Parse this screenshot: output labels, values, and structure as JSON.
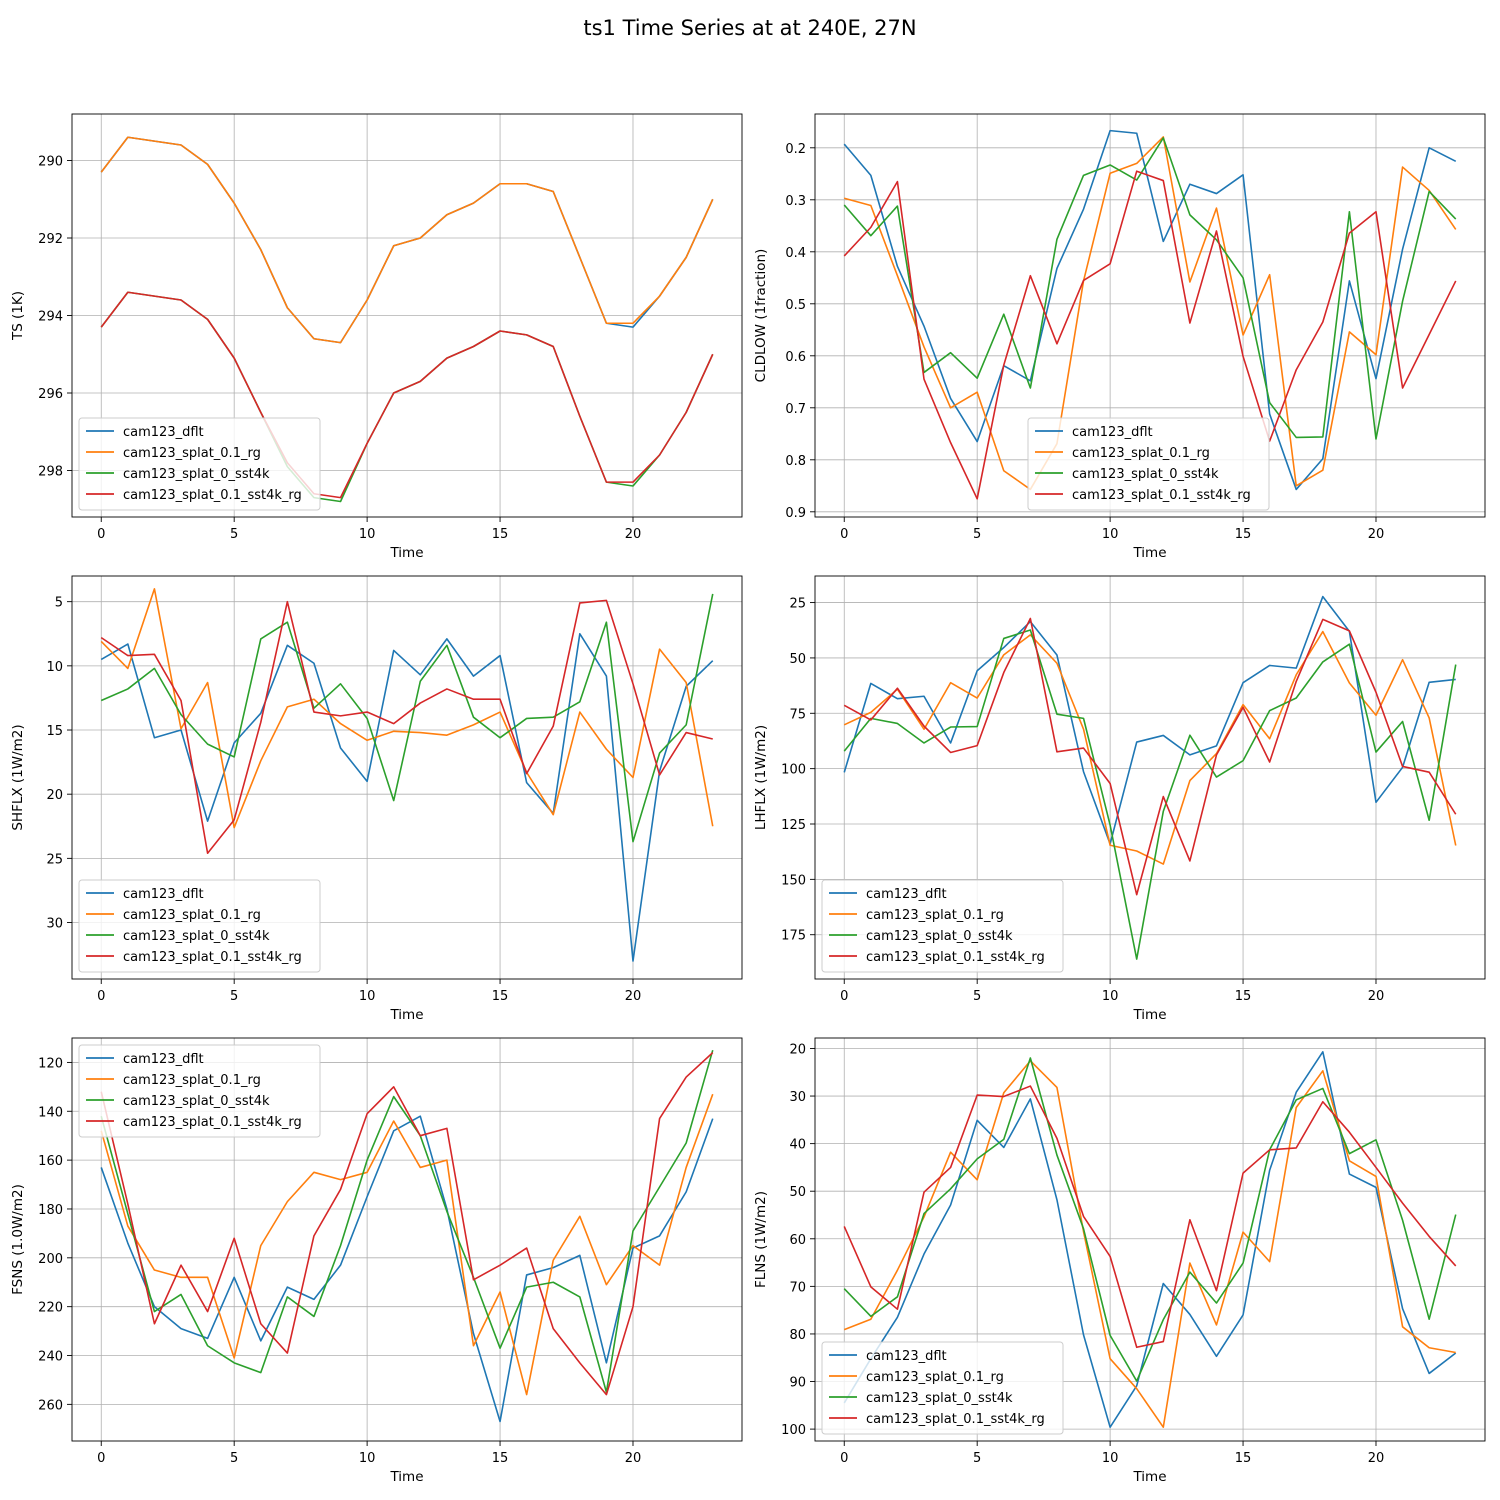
{
  "title": "ts1 Time Series at at 240E, 27N",
  "colors": {
    "cam123_dflt": "#1f77b4",
    "cam123_splat_0.1_rg": "#ff7f0e",
    "cam123_splat_0_sst4k": "#2ca02c",
    "cam123_splat_0.1_sst4k_rg": "#d62728"
  },
  "chart_data": [
    {
      "type": "line",
      "title": "",
      "xlabel": "Time",
      "ylabel": "TS (1K)",
      "xlim": [
        -1.1,
        24.1
      ],
      "ylim": [
        299.2,
        288.8
      ],
      "inverted_y": true,
      "xticks": [
        0,
        5,
        10,
        15,
        20
      ],
      "yticks": [
        290,
        292,
        294,
        296,
        298
      ],
      "grid": true,
      "legend_loc": "lower-left",
      "x": [
        0,
        1,
        2,
        3,
        4,
        5,
        6,
        7,
        8,
        9,
        10,
        11,
        12,
        13,
        14,
        15,
        16,
        17,
        18,
        19,
        20,
        21,
        22,
        23
      ],
      "series": [
        {
          "name": "cam123_dflt",
          "values": [
            290.3,
            289.4,
            289.5,
            289.6,
            290.1,
            291.1,
            292.3,
            293.8,
            294.6,
            294.7,
            293.6,
            292.2,
            292.0,
            291.4,
            291.1,
            290.6,
            290.6,
            290.8,
            292.5,
            294.2,
            294.3,
            293.5,
            292.5,
            291.0
          ]
        },
        {
          "name": "cam123_splat_0.1_rg",
          "values": [
            290.3,
            289.4,
            289.5,
            289.6,
            290.1,
            291.1,
            292.3,
            293.8,
            294.6,
            294.7,
            293.6,
            292.2,
            292.0,
            291.4,
            291.1,
            290.6,
            290.6,
            290.8,
            292.5,
            294.2,
            294.2,
            293.5,
            292.5,
            291.0
          ]
        },
        {
          "name": "cam123_splat_0_sst4k",
          "values": [
            294.3,
            293.4,
            293.5,
            293.6,
            294.1,
            295.1,
            296.5,
            297.9,
            298.7,
            298.8,
            297.3,
            296.0,
            295.7,
            295.1,
            294.8,
            294.4,
            294.5,
            294.8,
            296.6,
            298.3,
            298.4,
            297.6,
            296.5,
            295.0
          ]
        },
        {
          "name": "cam123_splat_0.1_sst4k_rg",
          "values": [
            294.3,
            293.4,
            293.5,
            293.6,
            294.1,
            295.1,
            296.5,
            297.8,
            298.6,
            298.7,
            297.3,
            296.0,
            295.7,
            295.1,
            294.8,
            294.4,
            294.5,
            294.8,
            296.6,
            298.3,
            298.3,
            297.6,
            296.5,
            295.0
          ]
        }
      ]
    },
    {
      "type": "line",
      "title": "",
      "xlabel": "Time",
      "ylabel": "CLDLOW (1fraction)",
      "xlim": [
        -1.1,
        24.1
      ],
      "ylim": [
        0.91,
        0.135
      ],
      "inverted_y": true,
      "xticks": [
        0,
        5,
        10,
        15,
        20
      ],
      "yticks": [
        0.2,
        0.3,
        0.4,
        0.5,
        0.6,
        0.7,
        0.8,
        0.9
      ],
      "grid": true,
      "legend_loc": "lower-right",
      "x": [
        0,
        1,
        2,
        3,
        4,
        5,
        6,
        7,
        8,
        9,
        10,
        11,
        12,
        13,
        14,
        15,
        16,
        17,
        18,
        19,
        20,
        21,
        22,
        23
      ],
      "series": [
        {
          "name": "cam123_dflt",
          "values": [
            0.193,
            0.253,
            0.428,
            0.543,
            0.682,
            0.765,
            0.619,
            0.648,
            0.432,
            0.318,
            0.167,
            0.172,
            0.38,
            0.27,
            0.288,
            0.252,
            0.712,
            0.857,
            0.798,
            0.456,
            0.644,
            0.395,
            0.2,
            0.226
          ]
        },
        {
          "name": "cam123_splat_0.1_rg",
          "values": [
            0.297,
            0.311,
            0.446,
            0.583,
            0.7,
            0.67,
            0.821,
            0.857,
            0.769,
            0.456,
            0.249,
            0.23,
            0.179,
            0.458,
            0.316,
            0.56,
            0.444,
            0.85,
            0.82,
            0.554,
            0.598,
            0.237,
            0.282,
            0.357
          ]
        },
        {
          "name": "cam123_splat_0_sst4k",
          "values": [
            0.31,
            0.369,
            0.312,
            0.632,
            0.594,
            0.643,
            0.52,
            0.662,
            0.376,
            0.253,
            0.233,
            0.262,
            0.181,
            0.329,
            0.377,
            0.45,
            0.69,
            0.757,
            0.756,
            0.323,
            0.76,
            0.495,
            0.284,
            0.337
          ]
        },
        {
          "name": "cam123_splat_0.1_sst4k_rg",
          "values": [
            0.408,
            0.353,
            0.265,
            0.645,
            0.767,
            0.875,
            0.618,
            0.446,
            0.577,
            0.455,
            0.423,
            0.245,
            0.263,
            0.537,
            0.36,
            0.601,
            0.764,
            0.627,
            0.535,
            0.364,
            0.323,
            0.662,
            0.559,
            0.456
          ]
        }
      ]
    },
    {
      "type": "line",
      "title": "",
      "xlabel": "Time",
      "ylabel": "SHFLX (1W/m2)",
      "xlim": [
        -1.1,
        24.1
      ],
      "ylim": [
        34.4,
        3.0
      ],
      "inverted_y": true,
      "xticks": [
        0,
        5,
        10,
        15,
        20
      ],
      "yticks": [
        5,
        10,
        15,
        20,
        25,
        30
      ],
      "grid": true,
      "legend_loc": "lower-left",
      "x": [
        0,
        1,
        2,
        3,
        4,
        5,
        6,
        7,
        8,
        9,
        10,
        11,
        12,
        13,
        14,
        15,
        16,
        17,
        18,
        19,
        20,
        21,
        22,
        23
      ],
      "series": [
        {
          "name": "cam123_dflt",
          "values": [
            9.5,
            8.3,
            15.6,
            15.0,
            22.1,
            16.0,
            13.7,
            8.4,
            9.8,
            16.4,
            19.0,
            8.8,
            10.7,
            7.9,
            10.8,
            9.2,
            19.1,
            21.5,
            7.5,
            10.8,
            33.0,
            18.2,
            11.6,
            9.6
          ]
        },
        {
          "name": "cam123_splat_0.1_rg",
          "values": [
            8.1,
            10.2,
            4.0,
            14.9,
            11.3,
            22.6,
            17.4,
            13.2,
            12.6,
            14.5,
            15.8,
            15.1,
            15.2,
            15.4,
            14.6,
            13.6,
            18.3,
            21.6,
            13.6,
            16.5,
            18.7,
            8.7,
            11.3,
            22.5
          ]
        },
        {
          "name": "cam123_splat_0_sst4k",
          "values": [
            12.7,
            11.8,
            10.2,
            13.8,
            16.1,
            17.1,
            7.9,
            6.6,
            13.3,
            11.4,
            14.1,
            20.5,
            11.2,
            8.4,
            14.0,
            15.6,
            14.1,
            14.0,
            12.8,
            6.6,
            23.7,
            16.8,
            14.6,
            4.4
          ]
        },
        {
          "name": "cam123_splat_0.1_sst4k_rg",
          "values": [
            7.8,
            9.2,
            9.1,
            12.7,
            24.6,
            22.0,
            14.4,
            5.0,
            13.6,
            13.9,
            13.6,
            14.5,
            12.9,
            11.8,
            12.6,
            12.6,
            18.4,
            14.7,
            5.1,
            4.9,
            11.4,
            18.5,
            15.2,
            15.7
          ]
        }
      ]
    },
    {
      "type": "line",
      "title": "",
      "xlabel": "Time",
      "ylabel": "LHFLX (1W/m2)",
      "xlim": [
        -1.1,
        24.1
      ],
      "ylim": [
        195.0,
        13.0
      ],
      "inverted_y": true,
      "xticks": [
        0,
        5,
        10,
        15,
        20
      ],
      "yticks": [
        25,
        50,
        75,
        100,
        125,
        150,
        175
      ],
      "grid": true,
      "legend_loc": "lower-left",
      "x": [
        0,
        1,
        2,
        3,
        4,
        5,
        6,
        7,
        8,
        9,
        10,
        11,
        12,
        13,
        14,
        15,
        16,
        17,
        18,
        19,
        20,
        21,
        22,
        23
      ],
      "series": [
        {
          "name": "cam123_dflt",
          "values": [
            101.7,
            61.5,
            68.4,
            67.3,
            88.4,
            55.8,
            45.3,
            33.6,
            48.7,
            101.4,
            134.0,
            88.0,
            85.0,
            93.8,
            89.7,
            61.2,
            53.4,
            54.6,
            22.3,
            38.0,
            115.2,
            99.4,
            61.0,
            59.7
          ]
        },
        {
          "name": "cam123_splat_0.1_rg",
          "values": [
            80.2,
            74.6,
            64.1,
            82.2,
            61.2,
            68.1,
            48.6,
            39.6,
            52.4,
            82.2,
            134.6,
            137.2,
            143.1,
            105.4,
            93.2,
            71.1,
            86.5,
            57.6,
            38.1,
            61.3,
            75.9,
            50.8,
            77.1,
            134.7
          ]
        },
        {
          "name": "cam123_splat_0_sst4k",
          "values": [
            92.1,
            77.3,
            79.6,
            88.4,
            81.2,
            81.0,
            41.2,
            37.4,
            75.4,
            77.3,
            125.5,
            186.0,
            119.3,
            84.9,
            103.8,
            96.4,
            73.8,
            68.1,
            51.8,
            43.8,
            92.5,
            78.7,
            123.3,
            53.0
          ]
        },
        {
          "name": "cam123_splat_0.1_sst4k_rg",
          "values": [
            71.4,
            78.0,
            63.7,
            80.8,
            92.7,
            89.6,
            56.6,
            32.2,
            92.4,
            90.7,
            106.7,
            156.9,
            112.6,
            141.7,
            93.8,
            72.3,
            97.0,
            60.6,
            32.6,
            37.8,
            65.5,
            99.0,
            101.6,
            120.6
          ]
        }
      ]
    },
    {
      "type": "line",
      "title": "",
      "xlabel": "Time",
      "ylabel": "FSNS (1.0W/m2)",
      "xlim": [
        -1.1,
        24.1
      ],
      "ylim": [
        275.0,
        110.0
      ],
      "inverted_y": true,
      "xticks": [
        0,
        5,
        10,
        15,
        20
      ],
      "yticks": [
        120,
        140,
        160,
        180,
        200,
        220,
        240,
        260
      ],
      "grid": true,
      "legend_loc": "upper-left",
      "x": [
        0,
        1,
        2,
        3,
        4,
        5,
        6,
        7,
        8,
        9,
        10,
        11,
        12,
        13,
        14,
        15,
        16,
        17,
        18,
        19,
        20,
        21,
        22,
        23
      ],
      "series": [
        {
          "name": "cam123_dflt",
          "values": [
            163,
            194,
            220,
            229,
            233,
            208,
            234,
            212,
            217,
            203,
            175,
            148,
            142,
            180,
            231,
            267,
            207,
            204,
            199,
            243,
            196,
            191,
            173,
            143
          ]
        },
        {
          "name": "cam123_splat_0.1_rg",
          "values": [
            148,
            187,
            205,
            208,
            208,
            241,
            195,
            177,
            165,
            168,
            165,
            144,
            163,
            160,
            236,
            214,
            256,
            201,
            183,
            211,
            195,
            203,
            163,
            133
          ]
        },
        {
          "name": "cam123_splat_0_sst4k",
          "values": [
            142,
            182,
            222,
            215,
            236,
            243,
            247,
            216,
            224,
            195,
            160,
            134,
            150,
            181,
            208,
            237,
            212,
            210,
            216,
            255,
            189,
            171,
            153,
            115
          ]
        },
        {
          "name": "cam123_splat_0.1_sst4k_rg",
          "values": [
            132,
            178,
            227,
            203,
            222,
            192,
            227,
            239,
            191,
            172,
            141,
            130,
            150,
            147,
            209,
            203,
            196,
            229,
            243,
            256,
            220,
            143,
            126,
            116
          ]
        }
      ]
    },
    {
      "type": "line",
      "title": "",
      "xlabel": "Time",
      "ylabel": "FLNS (1W/m2)",
      "xlim": [
        -1.1,
        24.1
      ],
      "ylim": [
        102.5,
        17.8
      ],
      "inverted_y": true,
      "xticks": [
        0,
        5,
        10,
        15,
        20
      ],
      "yticks": [
        20,
        30,
        40,
        50,
        60,
        70,
        80,
        90,
        100
      ],
      "grid": true,
      "legend_loc": "lower-left",
      "x": [
        0,
        1,
        2,
        3,
        4,
        5,
        6,
        7,
        8,
        9,
        10,
        11,
        12,
        13,
        14,
        15,
        16,
        17,
        18,
        19,
        20,
        21,
        22,
        23
      ],
      "series": [
        {
          "name": "cam123_dflt",
          "values": [
            94.5,
            85.2,
            76.5,
            63.2,
            52.9,
            35.1,
            40.8,
            30.6,
            51.8,
            80.2,
            99.6,
            90.9,
            69.4,
            75.9,
            84.7,
            76.0,
            45.6,
            29.2,
            20.7,
            46.4,
            49.2,
            74.7,
            88.3,
            84.0
          ]
        },
        {
          "name": "cam123_splat_0.1_rg",
          "values": [
            79.1,
            76.9,
            66.6,
            55.4,
            41.8,
            47.6,
            29.3,
            22.6,
            28.2,
            58.5,
            85.2,
            91.5,
            99.6,
            65.1,
            78.1,
            58.6,
            64.8,
            32.4,
            24.7,
            43.6,
            46.9,
            78.5,
            82.9,
            83.9
          ]
        },
        {
          "name": "cam123_splat_0_sst4k",
          "values": [
            70.5,
            76.3,
            72.2,
            54.7,
            49.5,
            43.2,
            39.1,
            22.0,
            42.4,
            57.9,
            80.3,
            89.9,
            77.0,
            67.0,
            73.5,
            65.1,
            41.3,
            30.8,
            28.4,
            42.1,
            39.2,
            56.1,
            76.9,
            54.9
          ]
        },
        {
          "name": "cam123_splat_0.1_sst4k_rg",
          "values": [
            57.4,
            70.1,
            74.8,
            50.2,
            45.0,
            29.8,
            30.1,
            27.9,
            38.9,
            55.3,
            63.7,
            82.8,
            81.6,
            56.0,
            70.9,
            46.2,
            41.3,
            40.9,
            31.2,
            37.6,
            45.0,
            52.5,
            59.5,
            65.7
          ]
        }
      ]
    }
  ]
}
